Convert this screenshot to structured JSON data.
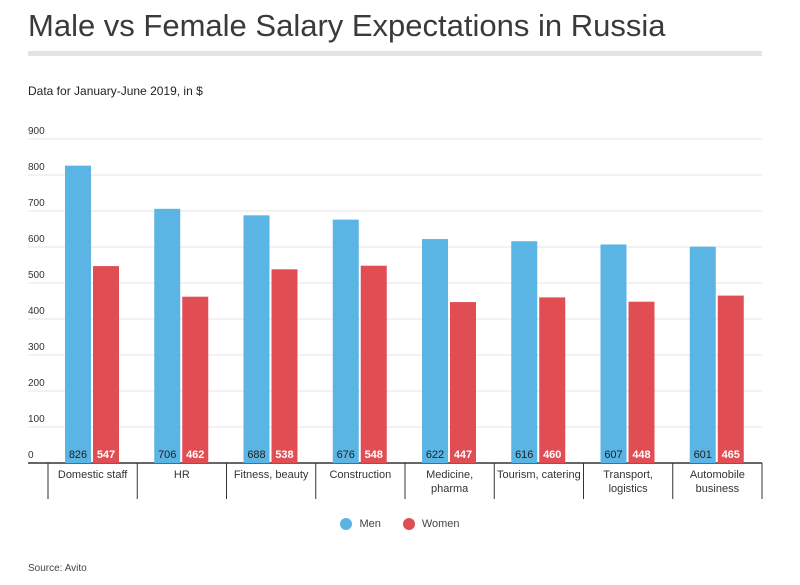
{
  "title": "Male vs Female Salary Expectations in Russia",
  "subtitle": "Data for January-June 2019, in $",
  "source": "Source: Avito",
  "colors": {
    "men": "#5ab4e4",
    "women": "#e04e54"
  },
  "chart_data": {
    "type": "bar",
    "title": "Male vs Female Salary Expectations in Russia",
    "subtitle": "Data for January-June 2019, in $",
    "categories": [
      [
        "Domestic staff"
      ],
      [
        "HR"
      ],
      [
        "Fitness, beauty"
      ],
      [
        "Construction"
      ],
      [
        "Medicine,",
        "pharma"
      ],
      [
        "Tourism, catering"
      ],
      [
        "Transport,",
        "logistics"
      ],
      [
        "Automobile",
        "business"
      ]
    ],
    "series": [
      {
        "name": "Men",
        "values": [
          826,
          706,
          688,
          676,
          622,
          616,
          607,
          601
        ]
      },
      {
        "name": "Women",
        "values": [
          547,
          462,
          538,
          548,
          447,
          460,
          448,
          465
        ]
      }
    ],
    "ylim": [
      0,
      900
    ],
    "yticks": [
      0,
      100,
      200,
      300,
      400,
      500,
      600,
      700,
      800,
      900
    ],
    "grid": true,
    "legend": "bottom-center"
  }
}
